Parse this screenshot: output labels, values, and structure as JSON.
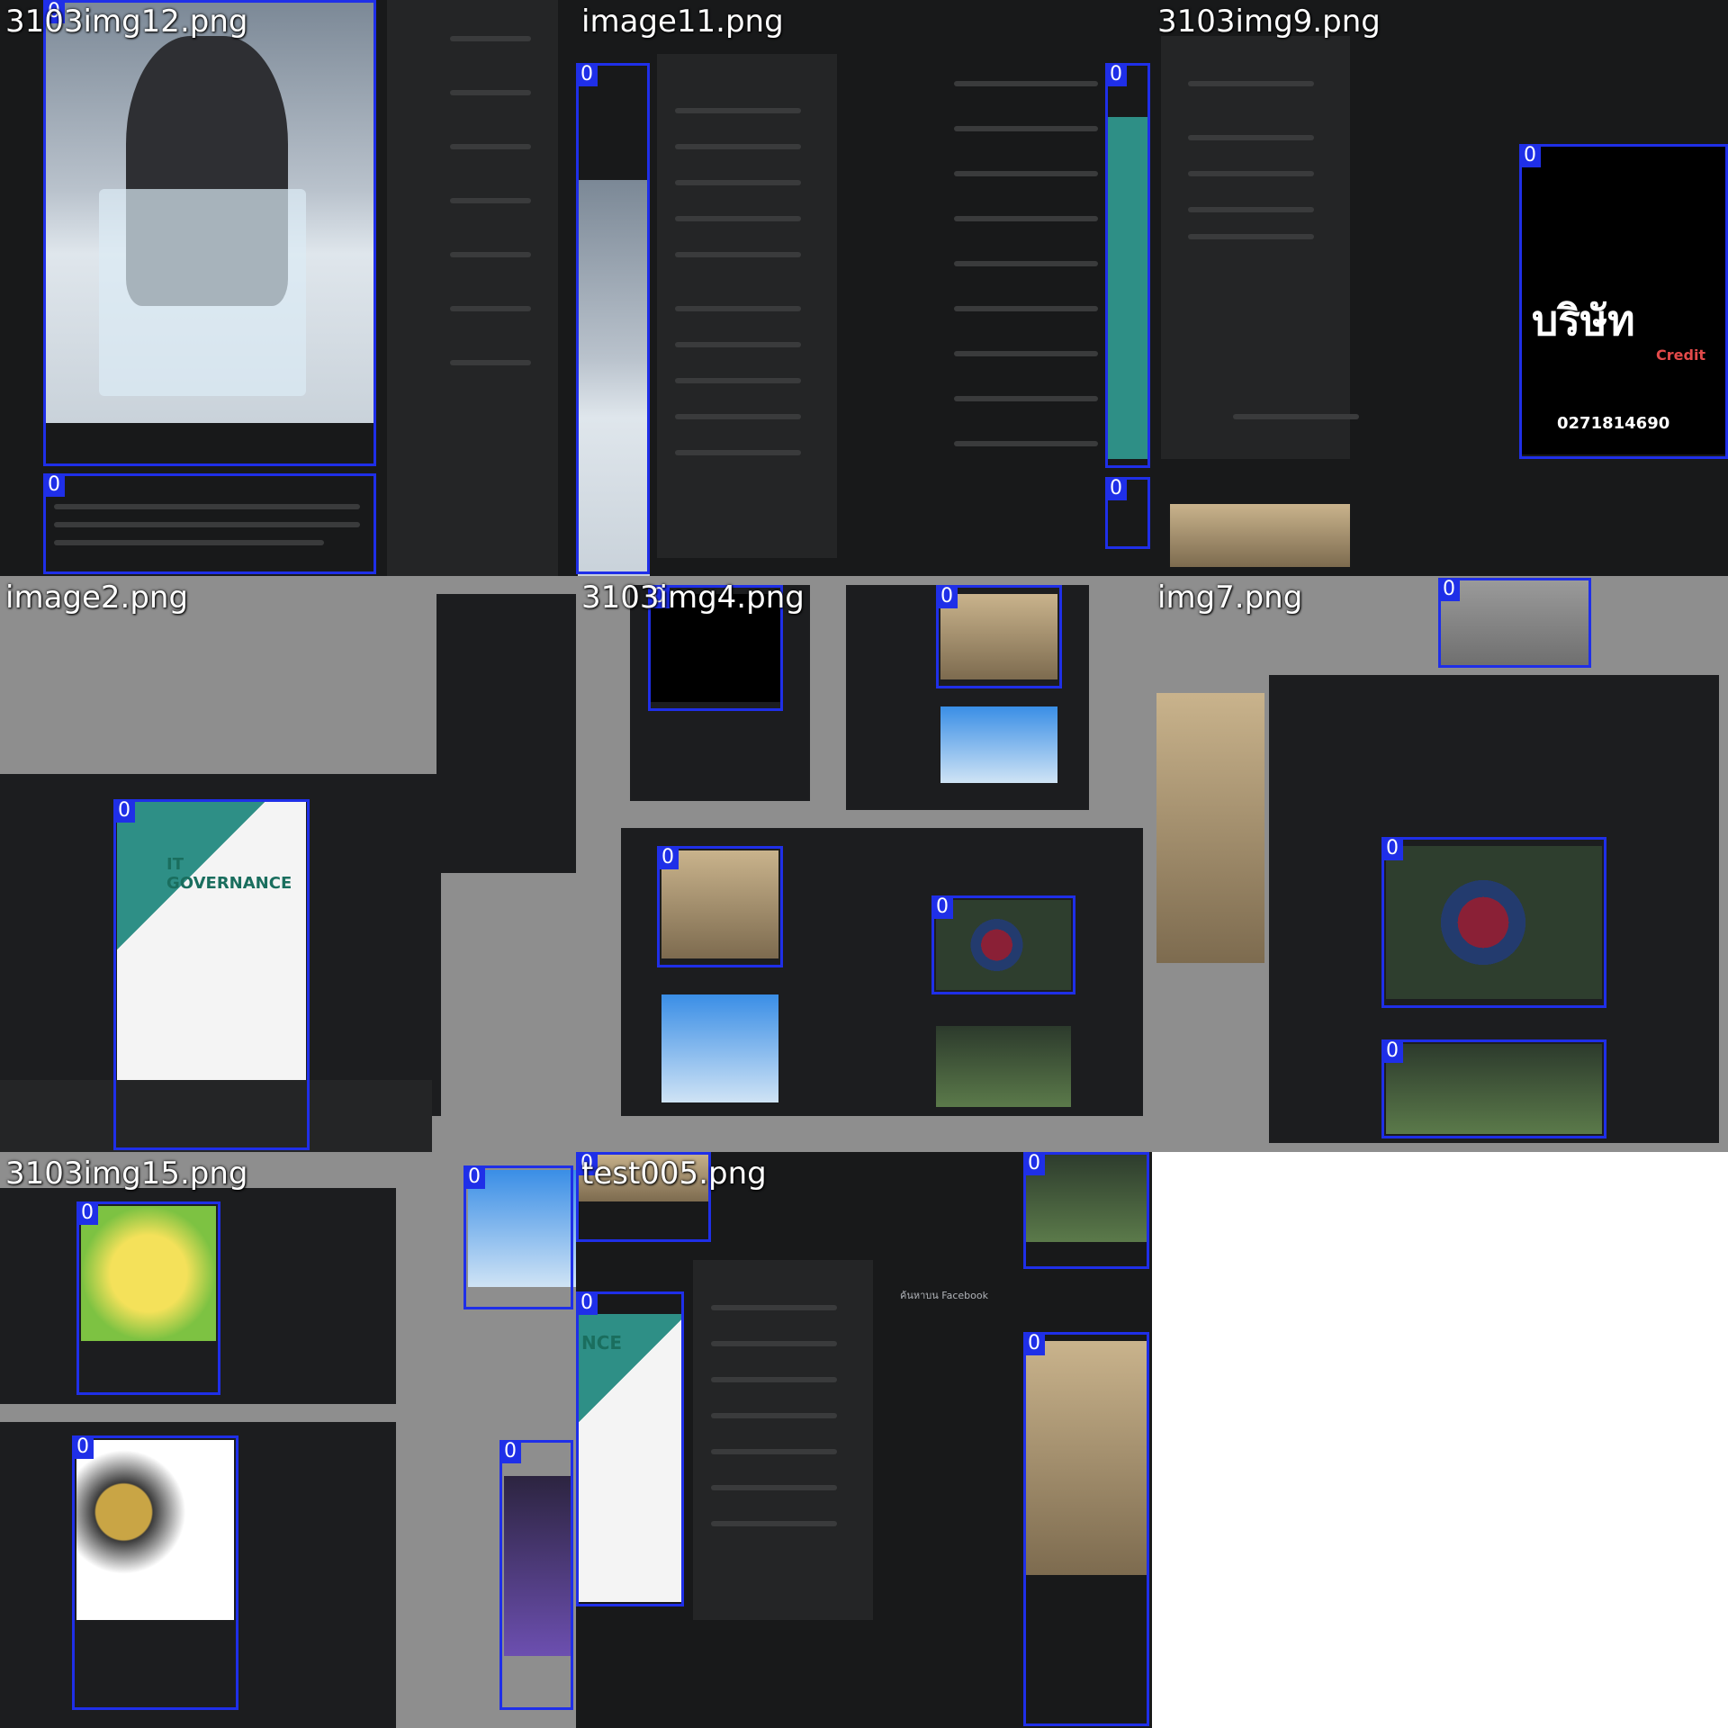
{
  "tiles": [
    {
      "title": "3103img12.png",
      "box_label": "0"
    },
    {
      "title": "image11.png",
      "box_label": "0"
    },
    {
      "title": "3103img9.png",
      "box_label": "0"
    },
    {
      "title": "image2.png",
      "box_label": "0"
    },
    {
      "title": "3103img4.png",
      "box_label": "0"
    },
    {
      "title": "img7.png",
      "box_label": "0"
    },
    {
      "title": "3103img15.png",
      "box_label": "0"
    },
    {
      "title": "test005.png",
      "box_label": "0"
    }
  ],
  "content": {
    "job_heading": "IT GOVERNANCE",
    "credit_heading": "บริษัท",
    "credit_sub": "Credit",
    "credit_phone": "0271814690",
    "search_placeholder": "ค้นหาบน Facebook",
    "nce_text": "NCE",
    "colors": {
      "box": "#1f2fe8",
      "bg_dark": "#18191a",
      "bg_gray": "#8e8e8e"
    }
  }
}
